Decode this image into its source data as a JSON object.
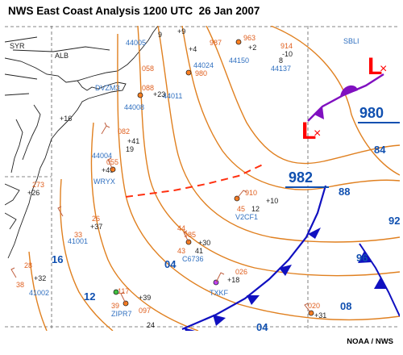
{
  "header": {
    "title": "NWS East Coast Analysis 1200 UTC  26 Jan 2007",
    "credit": "NOAA / NWS"
  },
  "colors": {
    "isobar": "#e08020",
    "front": "#1010c0",
    "occluded": "#8010c0",
    "low": "#ff0000",
    "pressure_label": "#1050b0",
    "station": "#3070c0",
    "coast": "#202020",
    "trough": "#ff3010"
  },
  "lows": [
    {
      "id": "low-ne",
      "symbol": "L"
    },
    {
      "id": "low-center",
      "symbol": "L"
    }
  ],
  "center_pressures": [
    {
      "id": "center-980",
      "value": "980"
    },
    {
      "id": "center-982",
      "value": "982"
    }
  ],
  "isobar_labels": [
    {
      "id": "iso-84",
      "value": "84"
    },
    {
      "id": "iso-88",
      "value": "88"
    },
    {
      "id": "iso-92",
      "value": "92"
    },
    {
      "id": "iso-96",
      "value": "96"
    },
    {
      "id": "iso-04-a",
      "value": "04"
    },
    {
      "id": "iso-04-b",
      "value": "04"
    },
    {
      "id": "iso-08",
      "value": "08"
    },
    {
      "id": "iso-12",
      "value": "12"
    },
    {
      "id": "iso-16",
      "value": "16"
    }
  ],
  "station_ids": [
    {
      "id": "sbli",
      "label": "SBLI"
    },
    {
      "id": "44137",
      "label": "44137"
    },
    {
      "id": "44150",
      "label": "44150"
    },
    {
      "id": "44024",
      "label": "44024"
    },
    {
      "id": "44011",
      "label": "44011"
    },
    {
      "id": "44008",
      "label": "44008"
    },
    {
      "id": "44004",
      "label": "44004"
    },
    {
      "id": "wryx",
      "label": "WRYX"
    },
    {
      "id": "v2cf1",
      "label": "V2CF1"
    },
    {
      "id": "c6736",
      "label": "C6736"
    },
    {
      "id": "txkf",
      "label": "TXKF"
    },
    {
      "id": "zipr7",
      "label": "ZIPR7"
    },
    {
      "id": "41001",
      "label": "41001"
    },
    {
      "id": "41002",
      "label": "41002"
    },
    {
      "id": "44005",
      "label": "44005"
    },
    {
      "id": "alb",
      "label": "ALB"
    },
    {
      "id": "syr",
      "label": "SYR"
    },
    {
      "id": "dvzm3",
      "label": "DVZM3"
    }
  ],
  "station_values": [
    {
      "id": "v-910",
      "label": "910"
    },
    {
      "id": "v-985",
      "label": "985"
    },
    {
      "id": "v-117",
      "label": "117"
    },
    {
      "id": "v-097",
      "label": "097"
    },
    {
      "id": "v-020",
      "label": "020"
    },
    {
      "id": "v-082",
      "label": "082"
    },
    {
      "id": "v-055",
      "label": "055"
    },
    {
      "id": "v-058",
      "label": "058"
    },
    {
      "id": "v-088",
      "label": "088"
    },
    {
      "id": "v-980",
      "label": "980"
    },
    {
      "id": "v-963",
      "label": "963"
    },
    {
      "id": "v-914",
      "label": "914"
    },
    {
      "id": "v-987",
      "label": "987"
    },
    {
      "id": "v-273",
      "label": "273"
    },
    {
      "id": "v-026",
      "label": "026"
    },
    {
      "id": "v-28",
      "label": "28"
    },
    {
      "id": "v-26",
      "label": "26"
    },
    {
      "id": "v-33",
      "label": "33"
    },
    {
      "id": "v-38",
      "label": "38"
    },
    {
      "id": "v-39",
      "label": "39"
    },
    {
      "id": "v-44",
      "label": "44"
    },
    {
      "id": "v-43",
      "label": "43"
    },
    {
      "id": "v-45",
      "label": "45"
    },
    {
      "id": "v-12",
      "label": "12"
    },
    {
      "id": "v-19",
      "label": "19"
    },
    {
      "id": "v-p30",
      "label": "+30"
    },
    {
      "id": "v-p37",
      "label": "+37"
    },
    {
      "id": "v-p39",
      "label": "+39"
    },
    {
      "id": "v-p41",
      "label": "+41"
    },
    {
      "id": "v-p10",
      "label": "+10"
    },
    {
      "id": "v-p16",
      "label": "+16"
    },
    {
      "id": "v-p18",
      "label": "+18"
    },
    {
      "id": "v-p49",
      "label": "+49"
    },
    {
      "id": "v-p32",
      "label": "+32"
    },
    {
      "id": "v-p9",
      "label": "+9"
    },
    {
      "id": "v-p4",
      "label": "+4"
    },
    {
      "id": "v-p23",
      "label": "+23"
    },
    {
      "id": "v-p26",
      "label": "+26"
    },
    {
      "id": "v-m10",
      "label": "-10"
    },
    {
      "id": "v-p2",
      "label": "+2"
    },
    {
      "id": "v-p31",
      "label": "+31"
    },
    {
      "id": "v-8",
      "label": "8"
    },
    {
      "id": "v-9",
      "label": "9"
    },
    {
      "id": "v-41",
      "label": "41"
    },
    {
      "id": "v-24",
      "label": "24"
    }
  ]
}
